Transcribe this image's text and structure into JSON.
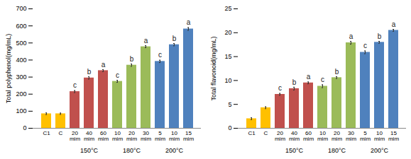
{
  "chart_data": [
    {
      "type": "bar",
      "y_label": "Total polyphenol(mg/mL)",
      "categories": [
        "C1",
        "C",
        "20 mim",
        "40 mim",
        "60 mim",
        "10 mim",
        "20 mim",
        "30 mim",
        "5 mim",
        "10 mim",
        "15 mim"
      ],
      "groups": [
        null,
        null,
        "150°C",
        "150°C",
        "150°C",
        "180°C",
        "180°C",
        "180°C",
        "200°C",
        "200°C",
        "200°C"
      ],
      "values": [
        85,
        85,
        215,
        295,
        338,
        275,
        370,
        478,
        392,
        490,
        582
      ],
      "errors": [
        5,
        4,
        6,
        7,
        6,
        6,
        7,
        6,
        7,
        7,
        8
      ],
      "letters": [
        null,
        null,
        "c",
        "b",
        "a",
        "c",
        "b",
        "a",
        "c",
        "b",
        "a"
      ],
      "colors": [
        "#ffc000",
        "#ffc000",
        "#c0504d",
        "#c0504d",
        "#c0504d",
        "#9bbb59",
        "#9bbb59",
        "#9bbb59",
        "#4f81bd",
        "#4f81bd",
        "#4f81bd"
      ],
      "ylim": [
        0,
        700
      ],
      "yticks": [
        0,
        100,
        200,
        300,
        400,
        500,
        600,
        700
      ],
      "grid": false
    },
    {
      "type": "bar",
      "y_label": "Total flavonoid(mg/mL)",
      "categories": [
        "C1",
        "C",
        "20 mim",
        "40 mim",
        "60 mim",
        "10 mim",
        "20 mim",
        "30 mim",
        "5 mim",
        "10 mim",
        "15 mim"
      ],
      "groups": [
        null,
        null,
        "150°C",
        "150°C",
        "150°C",
        "180°C",
        "180°C",
        "180°C",
        "200°C",
        "200°C",
        "200°C"
      ],
      "values": [
        2.0,
        4.3,
        7.1,
        8.3,
        9.5,
        8.8,
        10.6,
        17.9,
        15.9,
        18.0,
        20.5
      ],
      "errors": [
        0.2,
        0.2,
        0.2,
        0.3,
        0.2,
        0.3,
        0.2,
        0.3,
        0.3,
        0.2,
        0.2
      ],
      "letters": [
        null,
        null,
        "c",
        "b",
        "a",
        "c",
        "b",
        "a",
        "c",
        "b",
        "a"
      ],
      "colors": [
        "#ffc000",
        "#ffc000",
        "#c0504d",
        "#c0504d",
        "#c0504d",
        "#9bbb59",
        "#9bbb59",
        "#9bbb59",
        "#4f81bd",
        "#4f81bd",
        "#4f81bd"
      ],
      "ylim": [
        0,
        25
      ],
      "yticks": [
        0,
        5,
        10,
        15,
        20,
        25
      ],
      "grid": false
    }
  ]
}
